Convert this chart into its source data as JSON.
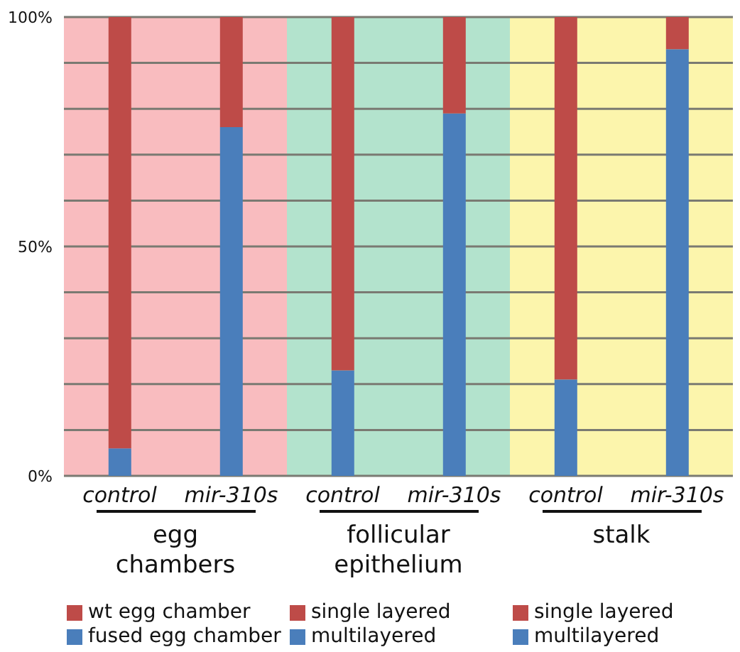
{
  "chart_data": [
    {
      "type": "bar",
      "stacked": true,
      "categories": [
        "control",
        "mir-310s"
      ],
      "xlabel": "egg chambers",
      "series": [
        {
          "name": "fused egg chamber",
          "color": "#4a7ebb",
          "values": [
            6,
            76
          ]
        },
        {
          "name": "wt egg chamber",
          "color": "#be4b48",
          "values": [
            94,
            24
          ]
        }
      ],
      "ylim": [
        0,
        100
      ],
      "yticks": [
        {
          "value": 0,
          "label": "0%"
        },
        {
          "value": 10,
          "label": null
        },
        {
          "value": 20,
          "label": null
        },
        {
          "value": 30,
          "label": null
        },
        {
          "value": 40,
          "label": null
        },
        {
          "value": 50,
          "label": "50%"
        },
        {
          "value": 60,
          "label": null
        },
        {
          "value": 70,
          "label": null
        },
        {
          "value": 80,
          "label": null
        },
        {
          "value": 90,
          "label": null
        },
        {
          "value": 100,
          "label": "100%"
        }
      ],
      "grid": "y",
      "legend": "bottom",
      "bands": [
        {
          "axis": "y",
          "from": 0,
          "to": 100,
          "color": "#f9bcbf"
        }
      ]
    },
    {
      "type": "bar",
      "stacked": true,
      "categories": [
        "control",
        "mir-310s"
      ],
      "xlabel": "follicular epithelium",
      "series": [
        {
          "name": "multilayered",
          "color": "#4a7ebb",
          "values": [
            23,
            79
          ]
        },
        {
          "name": "single layered",
          "color": "#be4b48",
          "values": [
            77,
            21
          ]
        }
      ],
      "ylim": [
        0,
        100
      ],
      "yticks": [
        0,
        10,
        20,
        30,
        40,
        50,
        60,
        70,
        80,
        90,
        100
      ],
      "grid": "y",
      "legend": "bottom",
      "tick_labels": "x",
      "bands": [
        {
          "axis": "y",
          "from": 0,
          "to": 100,
          "color": "#b3e3cd"
        }
      ]
    },
    {
      "type": "bar",
      "stacked": true,
      "categories": [
        "control",
        "mir-310s"
      ],
      "xlabel": "stalk",
      "series": [
        {
          "name": "multilayered",
          "color": "#4a7ebb",
          "values": [
            21,
            93
          ]
        },
        {
          "name": "single layered",
          "color": "#be4b48",
          "values": [
            79,
            7
          ]
        }
      ],
      "ylim": [
        0,
        100
      ],
      "yticks": [
        0,
        10,
        20,
        30,
        40,
        50,
        60,
        70,
        80,
        90,
        100
      ],
      "grid": "y",
      "legend": "bottom",
      "tick_labels": "x",
      "bands": [
        {
          "axis": "y",
          "from": 0,
          "to": 100,
          "color": "#fcf5ac"
        }
      ]
    }
  ]
}
